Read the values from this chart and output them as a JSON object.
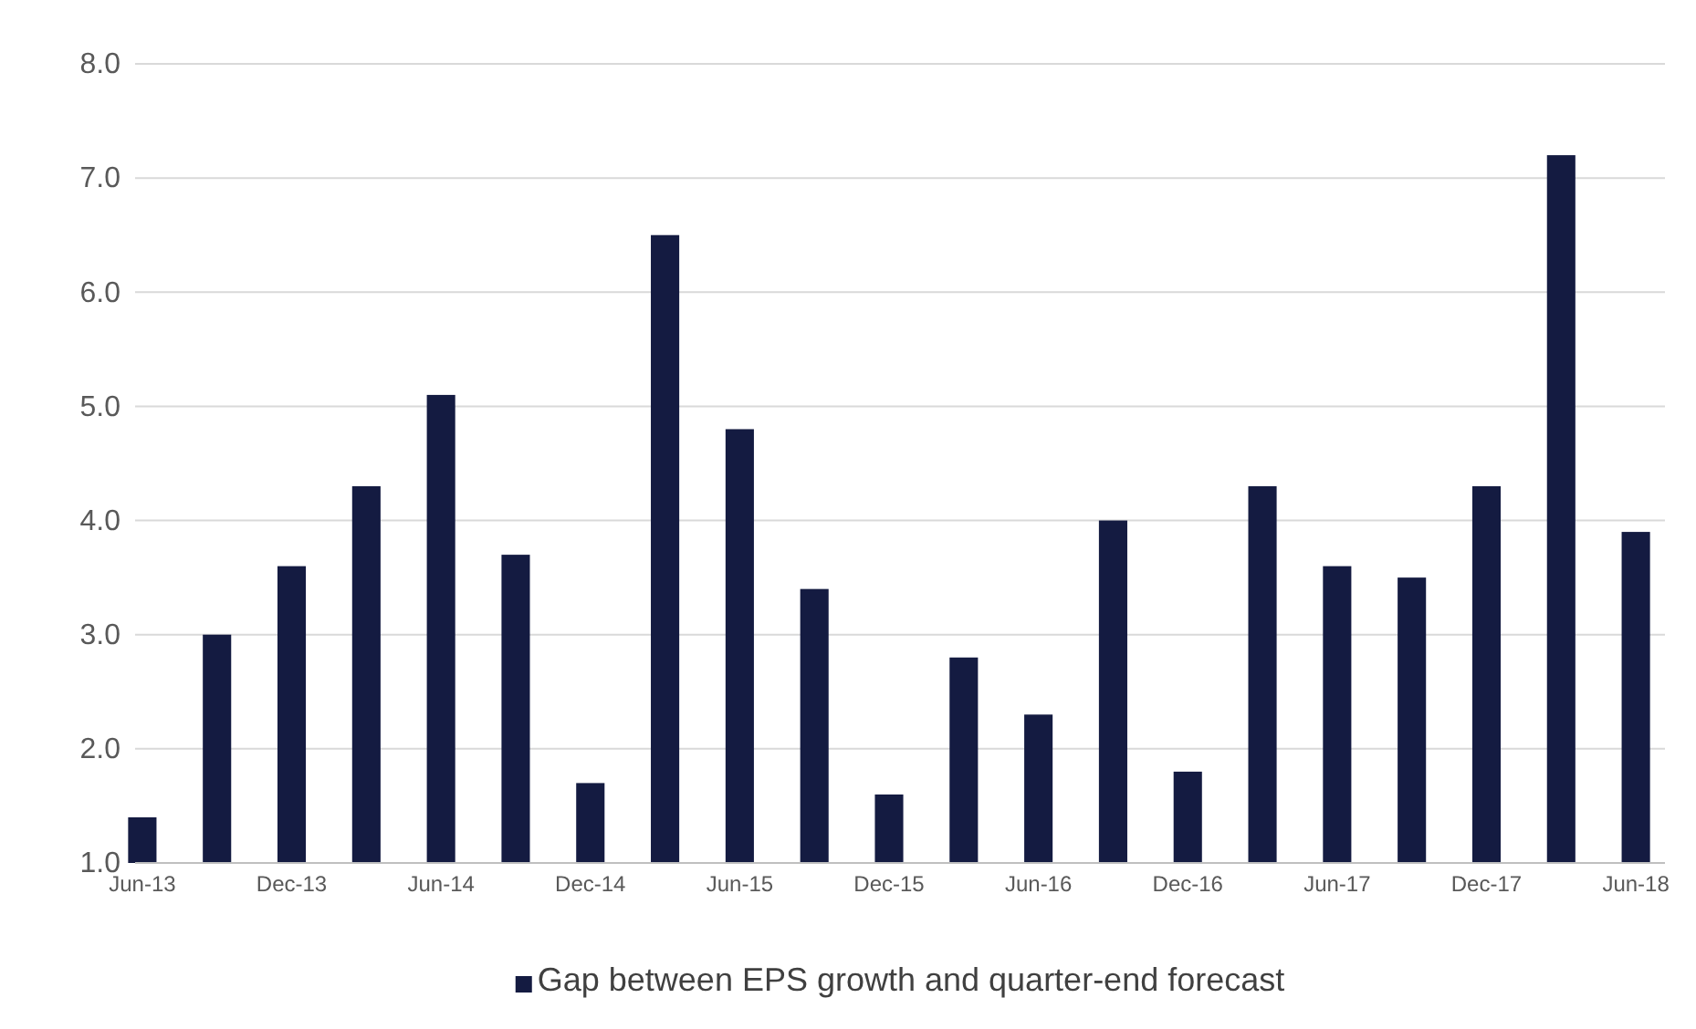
{
  "chart_data": {
    "type": "bar",
    "categories": [
      "Jun-13",
      null,
      "Dec-13",
      null,
      "Jun-14",
      null,
      "Dec-14",
      null,
      "Jun-15",
      null,
      "Dec-15",
      null,
      "Jun-16",
      null,
      "Dec-16",
      null,
      "Jun-17",
      null,
      "Dec-17",
      null,
      "Jun-18"
    ],
    "series": [
      {
        "name": "Gap between EPS growth and quarter-end forecast",
        "color": "#141b41",
        "values": [
          1.4,
          3.0,
          3.6,
          4.3,
          5.1,
          3.7,
          1.7,
          6.5,
          4.8,
          3.4,
          1.6,
          2.8,
          2.3,
          4.0,
          1.8,
          4.3,
          3.6,
          3.5,
          4.3,
          7.2,
          3.9
        ]
      }
    ],
    "ylim": [
      1,
      8
    ],
    "yticks": [
      {
        "value": 1,
        "label": "1.0"
      },
      {
        "value": 2,
        "label": "2.0"
      },
      {
        "value": 3,
        "label": "3.0"
      },
      {
        "value": 4,
        "label": "4.0"
      },
      {
        "value": 5,
        "label": "5.0"
      },
      {
        "value": 6,
        "label": "6.0"
      },
      {
        "value": 7,
        "label": "7.0"
      },
      {
        "value": 8,
        "label": "8.0"
      }
    ],
    "grid": "y",
    "legend": "bottom"
  }
}
